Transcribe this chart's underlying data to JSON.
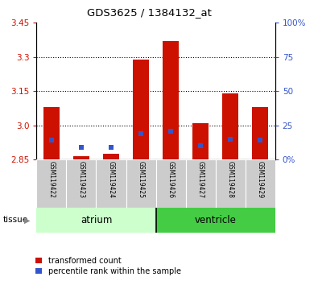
{
  "title": "GDS3625 / 1384132_at",
  "samples": [
    "GSM119422",
    "GSM119423",
    "GSM119424",
    "GSM119425",
    "GSM119426",
    "GSM119427",
    "GSM119428",
    "GSM119429"
  ],
  "red_bar_tops": [
    3.08,
    2.865,
    2.875,
    3.29,
    3.37,
    3.01,
    3.14,
    3.08
  ],
  "blue_left_positions": [
    2.935,
    2.905,
    2.905,
    2.965,
    2.975,
    2.912,
    2.94,
    2.935
  ],
  "baseline": 2.85,
  "ylim_left": [
    2.85,
    3.45
  ],
  "ylim_right": [
    0,
    100
  ],
  "yticks_left": [
    2.85,
    3.0,
    3.15,
    3.3,
    3.45
  ],
  "yticks_right": [
    0,
    25,
    50,
    75,
    100
  ],
  "ytick_labels_right": [
    "0%",
    "25",
    "50",
    "75",
    "100%"
  ],
  "grid_lines": [
    3.0,
    3.15,
    3.3
  ],
  "bar_color": "#cc1100",
  "blue_color": "#3355cc",
  "atrium_light_color": "#ccffcc",
  "ventricle_dark_color": "#44cc44",
  "sample_bg_color": "#cccccc",
  "bar_width": 0.55,
  "blue_marker_size": 5,
  "legend_red_label": "transformed count",
  "legend_blue_label": "percentile rank within the sample",
  "tissue_label": "tissue",
  "atrium_label": "atrium",
  "ventricle_label": "ventricle"
}
